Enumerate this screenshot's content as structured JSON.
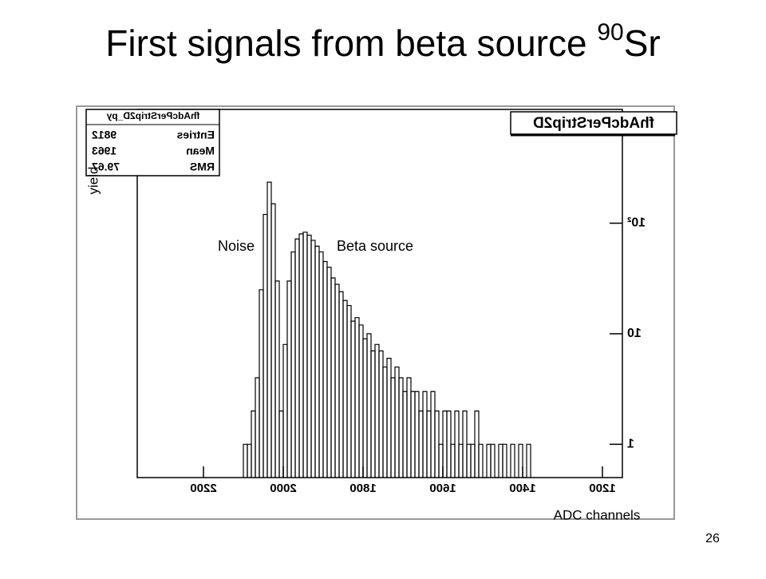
{
  "slide": {
    "title": "First signals from beta source ",
    "title_sup": "90",
    "title_end": "Sr",
    "page_number": "26"
  },
  "annotations": {
    "noise": "Noise",
    "beta": "Beta source"
  },
  "chart_data": {
    "type": "histogram",
    "title": "fhAdcPerStrip2D",
    "x_label": "ADC channels",
    "y_label": "yield",
    "stats": {
      "title": "fhAdcPerStrip2D_py",
      "rows": [
        [
          "Entries",
          9812
        ],
        [
          "Mean",
          1963
        ],
        [
          "RMS",
          79.67
        ]
      ]
    },
    "color": "#000000",
    "log_y": true,
    "mirrored": true,
    "xlim": [
      1150,
      2366
    ],
    "ylim": [
      0.5,
      1070
    ],
    "xticks": [
      1200,
      1400,
      1600,
      1800,
      2000,
      2200
    ],
    "yticks": [
      1,
      10,
      {
        "value": 100,
        "label": "10²"
      }
    ],
    "bins": [
      1380,
      1390,
      1400,
      1410,
      1420,
      1430,
      1440,
      1450,
      1460,
      1470,
      1480,
      1490,
      1500,
      1510,
      1520,
      1530,
      1540,
      1550,
      1560,
      1570,
      1580,
      1590,
      1600,
      1610,
      1620,
      1630,
      1640,
      1650,
      1660,
      1670,
      1680,
      1690,
      1700,
      1710,
      1720,
      1730,
      1740,
      1750,
      1760,
      1770,
      1780,
      1790,
      1800,
      1810,
      1820,
      1830,
      1840,
      1850,
      1860,
      1870,
      1880,
      1890,
      1900,
      1910,
      1920,
      1930,
      1940,
      1950,
      1960,
      1970,
      1980,
      1990,
      2000,
      2010,
      2020,
      2030,
      2040,
      2050,
      2060,
      2070,
      2080,
      2090,
      2100
    ],
    "values": [
      1,
      0,
      1,
      0,
      1,
      0,
      1,
      1,
      0,
      1,
      1,
      0,
      1,
      2,
      1,
      1,
      2,
      1,
      2,
      1,
      2,
      2,
      1,
      2,
      3,
      2,
      3,
      2,
      3,
      3,
      4,
      3,
      4,
      5,
      4,
      6,
      5,
      7,
      8,
      7,
      10,
      9,
      12,
      14,
      13,
      18,
      20,
      24,
      28,
      32,
      40,
      45,
      55,
      62,
      70,
      78,
      83,
      80,
      72,
      55,
      30,
      8,
      2,
      30,
      150,
      235,
      120,
      25,
      4,
      2,
      1,
      1
    ]
  }
}
